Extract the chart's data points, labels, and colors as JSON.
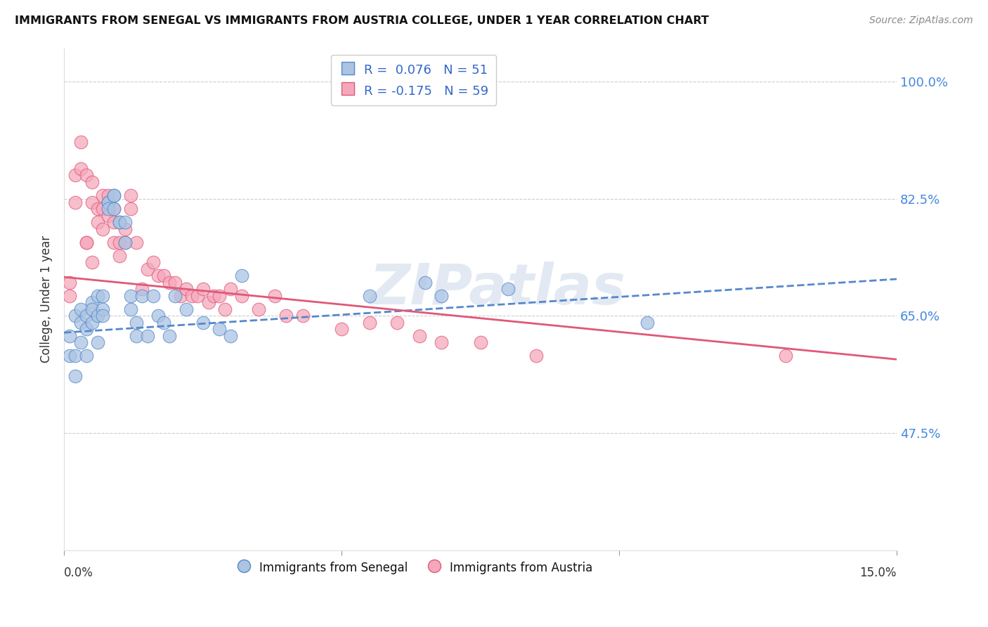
{
  "title": "IMMIGRANTS FROM SENEGAL VS IMMIGRANTS FROM AUSTRIA COLLEGE, UNDER 1 YEAR CORRELATION CHART",
  "source": "Source: ZipAtlas.com",
  "ylabel": "College, Under 1 year",
  "y_tick_vals": [
    1.0,
    0.825,
    0.65,
    0.475
  ],
  "y_tick_labels": [
    "100.0%",
    "82.5%",
    "65.0%",
    "47.5%"
  ],
  "xmin": 0.0,
  "xmax": 0.15,
  "ymin": 0.3,
  "ymax": 1.05,
  "R_senegal": 0.076,
  "N_senegal": 51,
  "R_austria": -0.175,
  "N_austria": 59,
  "color_senegal": "#aac4e2",
  "color_austria": "#f5a8bb",
  "line_senegal_color": "#5588cc",
  "line_austria_color": "#e05878",
  "watermark": "ZIPatlas",
  "trendline_senegal_x0": 0.0,
  "trendline_senegal_y0": 0.625,
  "trendline_senegal_x1": 0.15,
  "trendline_senegal_y1": 0.705,
  "trendline_austria_x0": 0.0,
  "trendline_austria_y0": 0.708,
  "trendline_austria_x1": 0.15,
  "trendline_austria_y1": 0.585,
  "senegal_x": [
    0.001,
    0.001,
    0.002,
    0.002,
    0.002,
    0.003,
    0.003,
    0.003,
    0.004,
    0.004,
    0.004,
    0.005,
    0.005,
    0.005,
    0.006,
    0.006,
    0.006,
    0.007,
    0.007,
    0.007,
    0.008,
    0.008,
    0.008,
    0.009,
    0.009,
    0.009,
    0.01,
    0.01,
    0.011,
    0.011,
    0.012,
    0.012,
    0.013,
    0.013,
    0.014,
    0.015,
    0.016,
    0.017,
    0.018,
    0.019,
    0.02,
    0.022,
    0.025,
    0.028,
    0.03,
    0.032,
    0.055,
    0.065,
    0.068,
    0.08,
    0.105
  ],
  "senegal_y": [
    0.62,
    0.59,
    0.65,
    0.59,
    0.56,
    0.66,
    0.64,
    0.61,
    0.65,
    0.63,
    0.59,
    0.67,
    0.66,
    0.64,
    0.68,
    0.65,
    0.61,
    0.68,
    0.66,
    0.65,
    0.82,
    0.82,
    0.81,
    0.83,
    0.83,
    0.81,
    0.79,
    0.79,
    0.79,
    0.76,
    0.68,
    0.66,
    0.64,
    0.62,
    0.68,
    0.62,
    0.68,
    0.65,
    0.64,
    0.62,
    0.68,
    0.66,
    0.64,
    0.63,
    0.62,
    0.71,
    0.68,
    0.7,
    0.68,
    0.69,
    0.64
  ],
  "austria_x": [
    0.001,
    0.001,
    0.002,
    0.002,
    0.003,
    0.003,
    0.004,
    0.004,
    0.004,
    0.005,
    0.005,
    0.005,
    0.006,
    0.006,
    0.007,
    0.007,
    0.007,
    0.008,
    0.008,
    0.009,
    0.009,
    0.009,
    0.01,
    0.01,
    0.011,
    0.011,
    0.012,
    0.012,
    0.013,
    0.014,
    0.015,
    0.016,
    0.017,
    0.018,
    0.019,
    0.02,
    0.021,
    0.022,
    0.023,
    0.024,
    0.025,
    0.026,
    0.027,
    0.028,
    0.029,
    0.03,
    0.032,
    0.035,
    0.038,
    0.04,
    0.043,
    0.05,
    0.055,
    0.06,
    0.064,
    0.068,
    0.075,
    0.085,
    0.13
  ],
  "austria_y": [
    0.7,
    0.68,
    0.82,
    0.86,
    0.91,
    0.87,
    0.76,
    0.76,
    0.86,
    0.73,
    0.85,
    0.82,
    0.81,
    0.79,
    0.83,
    0.81,
    0.78,
    0.83,
    0.8,
    0.81,
    0.79,
    0.76,
    0.76,
    0.74,
    0.78,
    0.76,
    0.83,
    0.81,
    0.76,
    0.69,
    0.72,
    0.73,
    0.71,
    0.71,
    0.7,
    0.7,
    0.68,
    0.69,
    0.68,
    0.68,
    0.69,
    0.67,
    0.68,
    0.68,
    0.66,
    0.69,
    0.68,
    0.66,
    0.68,
    0.65,
    0.65,
    0.63,
    0.64,
    0.64,
    0.62,
    0.61,
    0.61,
    0.59,
    0.59
  ]
}
